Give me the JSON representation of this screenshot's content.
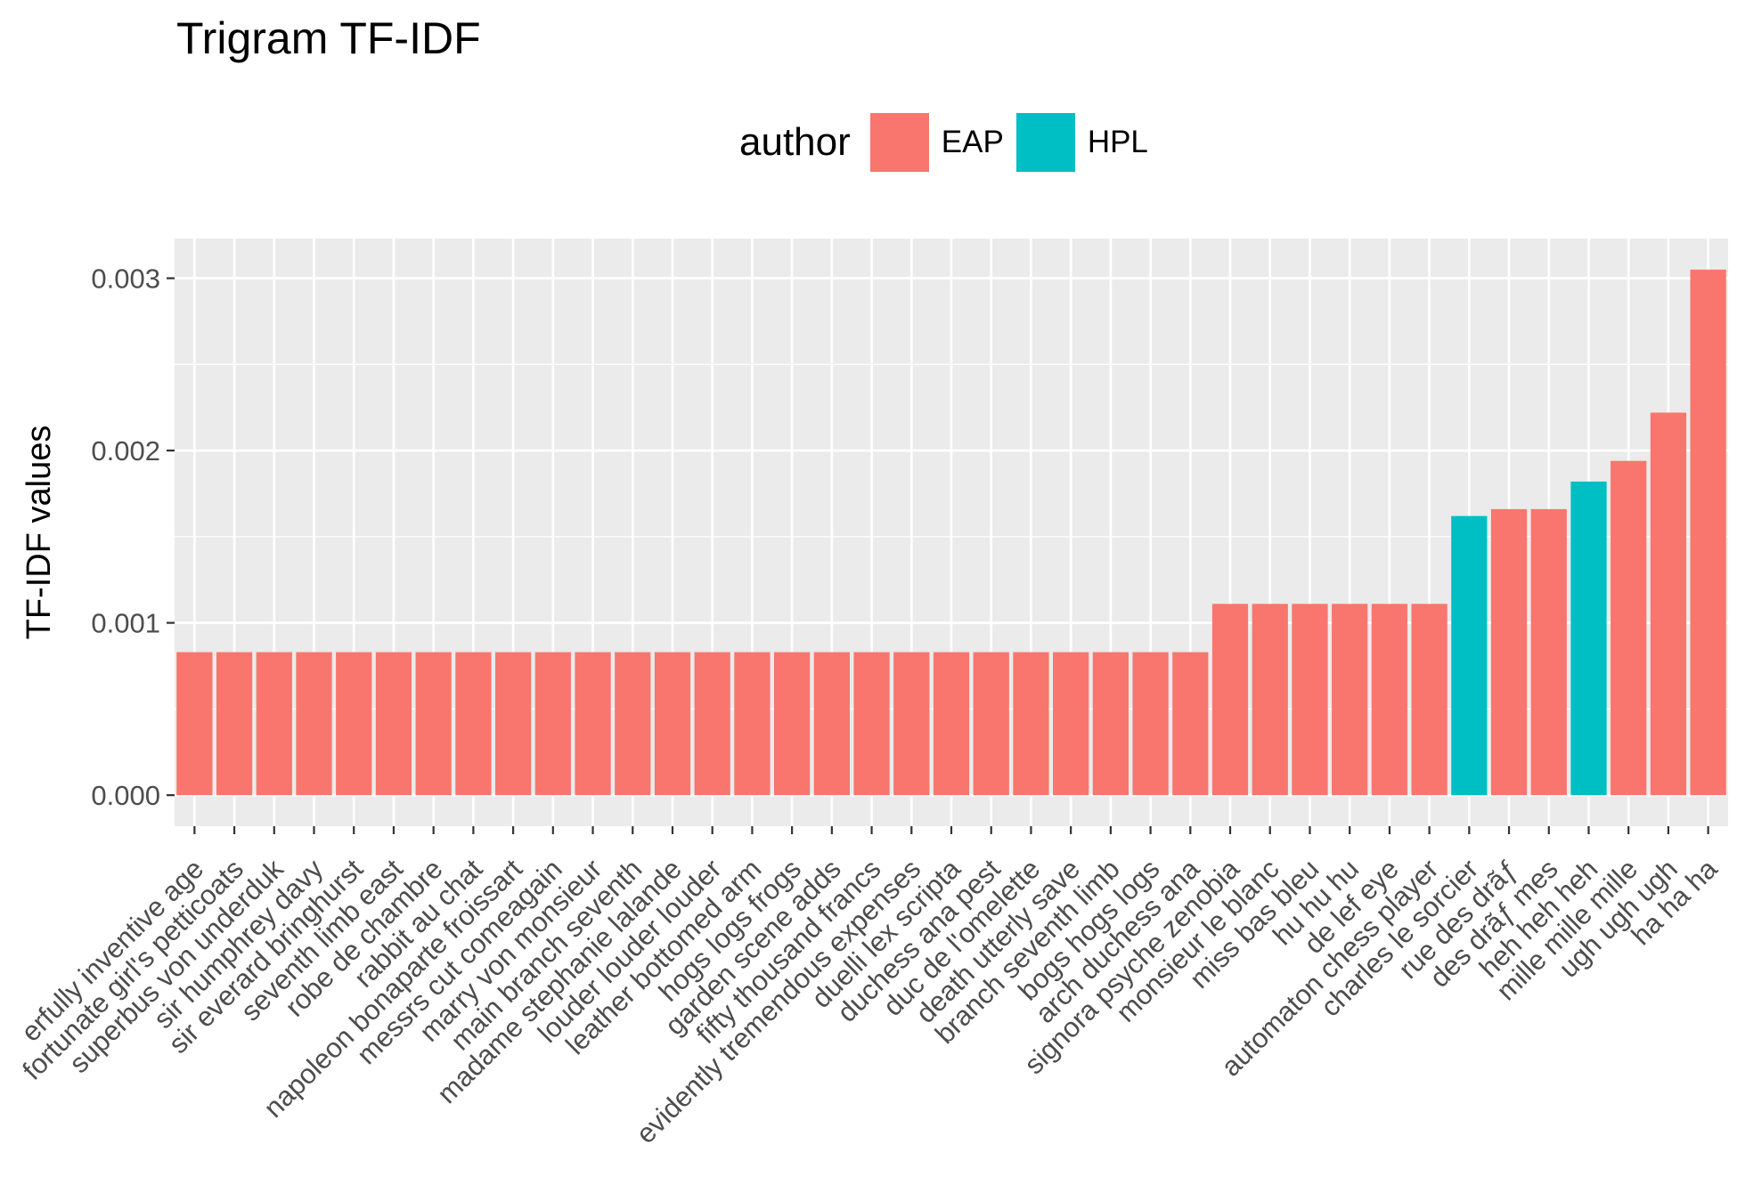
{
  "chart_data": {
    "type": "bar",
    "title": "Trigram TF-IDF",
    "xlabel": "",
    "ylabel": "TF-IDF values",
    "ylim": [
      -0.00018,
      0.00323
    ],
    "yticks": [
      "0.000",
      "0.001",
      "0.002",
      "0.003"
    ],
    "ytick_values": [
      0,
      0.001,
      0.002,
      0.003
    ],
    "grid": true,
    "legend": {
      "title": "author",
      "position": "top",
      "entries": [
        {
          "label": "EAP",
          "color": "#F8766D"
        },
        {
          "label": "HPL",
          "color": "#00BFC4"
        }
      ]
    },
    "categories": [
      "erfully inventive age",
      "fortunate girl's petticoats",
      "superbus von underduk",
      "sir humphrey davy",
      "sir everard bringhurst",
      "seventh limb east",
      "robe de chambre",
      "rabbit au chat",
      "napoleon bonaparte froissart",
      "messrs cut comeagain",
      "marry von monsieur",
      "main branch seventh",
      "madame stephanie lalande",
      "louder louder louder",
      "leather bottomed arm",
      "hogs logs frogs",
      "garden scene adds",
      "fifty thousand francs",
      "evidently tremendous expenses",
      "duelli lex scripta",
      "duchess ana pest",
      "duc de l'omelette",
      "death utterly save",
      "branch seventh limb",
      "bogs hogs logs",
      "arch duchess ana",
      "signora psyche zenobia",
      "monsieur le blanc",
      "miss bas bleu",
      "hu hu hu",
      "de lef eye",
      "automaton chess player",
      "charles le sorcier",
      "rue des drãƒ",
      "des drãƒ mes",
      "heh heh heh",
      "mille mille mille",
      "ugh ugh ugh",
      "ha ha ha"
    ],
    "values": [
      0.00083,
      0.00083,
      0.00083,
      0.00083,
      0.00083,
      0.00083,
      0.00083,
      0.00083,
      0.00083,
      0.00083,
      0.00083,
      0.00083,
      0.00083,
      0.00083,
      0.00083,
      0.00083,
      0.00083,
      0.00083,
      0.00083,
      0.00083,
      0.00083,
      0.00083,
      0.00083,
      0.00083,
      0.00083,
      0.00083,
      0.00111,
      0.00111,
      0.00111,
      0.00111,
      0.00111,
      0.00111,
      0.00162,
      0.00166,
      0.00166,
      0.00182,
      0.00194,
      0.00222,
      0.00305
    ],
    "authors": [
      "EAP",
      "EAP",
      "EAP",
      "EAP",
      "EAP",
      "EAP",
      "EAP",
      "EAP",
      "EAP",
      "EAP",
      "EAP",
      "EAP",
      "EAP",
      "EAP",
      "EAP",
      "EAP",
      "EAP",
      "EAP",
      "EAP",
      "EAP",
      "EAP",
      "EAP",
      "EAP",
      "EAP",
      "EAP",
      "EAP",
      "EAP",
      "EAP",
      "EAP",
      "EAP",
      "EAP",
      "EAP",
      "HPL",
      "EAP",
      "EAP",
      "HPL",
      "EAP",
      "EAP",
      "EAP"
    ]
  }
}
